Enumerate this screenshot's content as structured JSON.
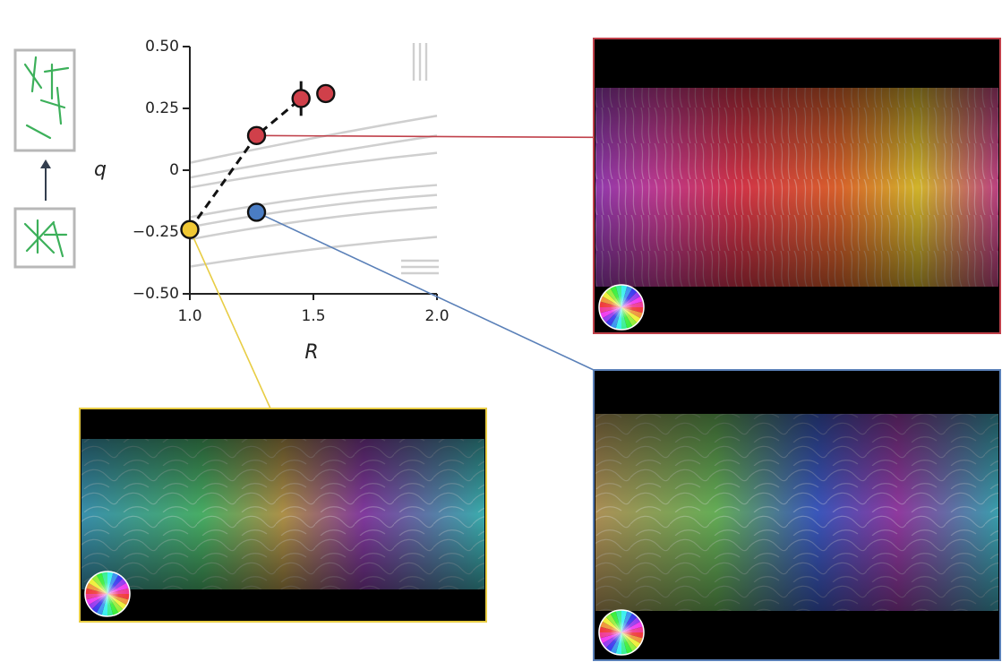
{
  "chart_data": {
    "type": "scatter",
    "xlabel": "R",
    "ylabel": "q",
    "xlim": [
      1.0,
      2.0
    ],
    "ylim": [
      -0.5,
      0.5
    ],
    "xticks": [
      "1.0",
      "1.5",
      "2.0"
    ],
    "yticks": [
      "0.50",
      "0.25",
      "0",
      "−0.25",
      "−0.50"
    ],
    "xtick_values": [
      1.0,
      1.5,
      2.0
    ],
    "ytick_values": [
      0.5,
      0.25,
      0,
      -0.25,
      -0.5
    ],
    "series": [
      {
        "color": "#d0404a",
        "connected": true,
        "points": [
          {
            "x": 1.0,
            "y": -0.24
          },
          {
            "x": 1.27,
            "y": 0.14
          },
          {
            "x": 1.45,
            "y": 0.29,
            "err": 0.07
          },
          {
            "x": 1.55,
            "y": 0.31
          }
        ]
      },
      {
        "color": "#4a7dc4",
        "connected": false,
        "points": [
          {
            "x": 1.27,
            "y": -0.17
          }
        ]
      }
    ],
    "highlight_point": {
      "x": 1.0,
      "y": -0.24,
      "color": "#f0c834"
    },
    "background_curves": [
      [
        [
          1.0,
          0.03
        ],
        [
          1.5,
          0.13
        ],
        [
          2.0,
          0.22
        ]
      ],
      [
        [
          1.0,
          -0.03
        ],
        [
          1.5,
          0.06
        ],
        [
          2.0,
          0.14
        ]
      ],
      [
        [
          1.0,
          -0.07
        ],
        [
          1.5,
          0.01
        ],
        [
          2.0,
          0.07
        ]
      ],
      [
        [
          1.0,
          -0.19
        ],
        [
          1.5,
          -0.11
        ],
        [
          2.0,
          -0.06
        ]
      ],
      [
        [
          1.0,
          -0.23
        ],
        [
          1.5,
          -0.15
        ],
        [
          2.0,
          -0.1
        ]
      ],
      [
        [
          1.0,
          -0.28
        ],
        [
          1.5,
          -0.2
        ],
        [
          2.0,
          -0.15
        ]
      ],
      [
        [
          1.0,
          -0.39
        ],
        [
          1.5,
          -0.32
        ],
        [
          2.0,
          -0.27
        ]
      ]
    ],
    "curve_color": "#cfcfcf",
    "grid": false,
    "panels": {
      "red_color": "#c0404a",
      "blue_color": "#5a80b8",
      "yellow_color": "#e8cd45"
    }
  }
}
